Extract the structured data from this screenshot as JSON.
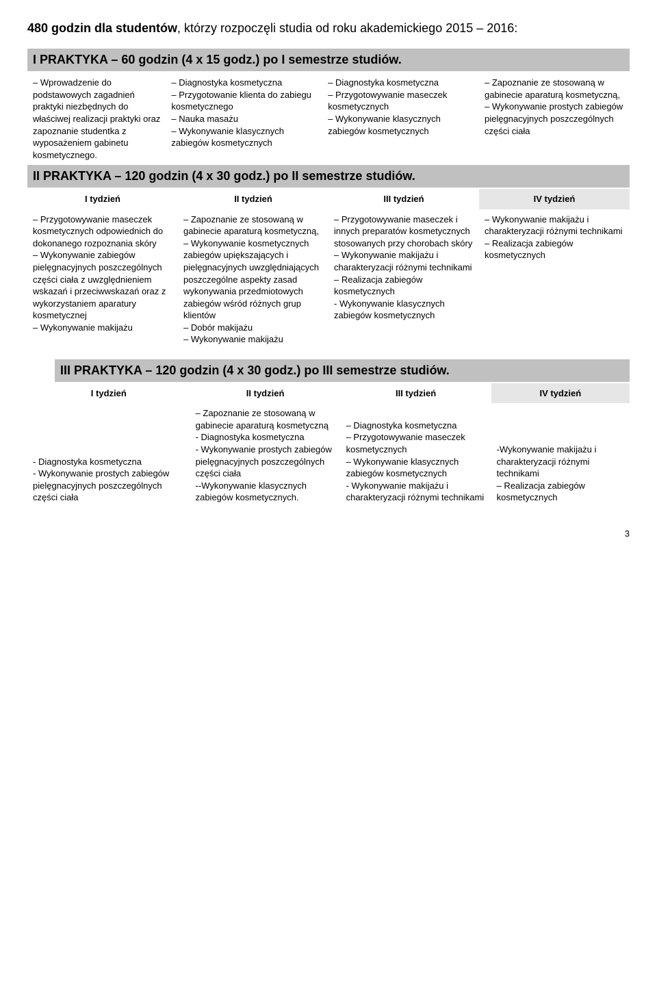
{
  "intro": {
    "bold": "480 godzin dla studentów",
    "rest": ", którzy rozpoczęli studia od roku akademickiego 2015 – 2016:"
  },
  "section1": {
    "title": "I PRAKTYKA – 60 godzin (4 x 15 godz.) po I semestrze studiów.",
    "cols": [
      "– Wprowadzenie do podstawowych zagadnień praktyki niezbędnych do właściwej realizacji praktyki oraz zapoznanie studentka z wyposażeniem gabinetu kosmetycznego.",
      "– Diagnostyka kosmetyczna\n– Przygotowanie klienta do zabiegu kosmetycznego\n– Nauka masażu\n– Wykonywanie klasycznych zabiegów kosmetycznych",
      "– Diagnostyka kosmetyczna\n– Przygotowywanie maseczek kosmetycznych\n– Wykonywanie klasycznych zabiegów kosmetycznych",
      "– Zapoznanie ze stosowaną w gabinecie aparaturą kosmetyczną,\n– Wykonywanie prostych zabiegów pielęgnacyjnych poszczególnych części ciała"
    ]
  },
  "section2": {
    "title": "II PRAKTYKA – 120 godzin (4 x 30 godz.) po II semestrze studiów.",
    "weeks": [
      "I tydzień",
      "II tydzień",
      "III tydzień",
      "IV tydzień"
    ],
    "cols": [
      "– Przygotowywanie maseczek kosmetycznych odpowiednich do dokonanego rozpoznania skóry\n– Wykonywanie zabiegów pielęgnacyjnych poszczególnych części ciała z uwzględnieniem wskazań i przeciwwskazań oraz z wykorzystaniem aparatury kosmetycznej\n– Wykonywanie makijażu",
      "– Zapoznanie ze stosowaną w gabinecie aparaturą kosmetyczną,\n– Wykonywanie kosmetycznych zabiegów upiększających i pielęgnacyjnych uwzględniających poszczególne aspekty zasad wykonywania przedmiotowych zabiegów wśród różnych grup klientów\n– Dobór makijażu\n– Wykonywanie makijażu",
      "– Przygotowywanie maseczek i innych preparatów kosmetycznych stosowanych przy chorobach skóry\n– Wykonywanie makijażu i charakteryzacji różnymi technikami\n– Realizacja zabiegów kosmetycznych\n- Wykonywanie klasycznych zabiegów kosmetycznych",
      "– Wykonywanie makijażu i charakteryzacji różnymi technikami\n– Realizacja zabiegów kosmetycznych"
    ]
  },
  "section3": {
    "title": "III PRAKTYKA – 120 godzin (4 x 30 godz.) po III semestrze studiów.",
    "weeks": [
      "I tydzień",
      "II tydzień",
      "III tydzień",
      "IV tydzień"
    ],
    "cols": [
      "- Diagnostyka kosmetyczna\n- Wykonywanie prostych zabiegów pielęgnacyjnych poszczególnych części ciała",
      "– Zapoznanie ze stosowaną w gabinecie aparaturą kosmetyczną\n- Diagnostyka kosmetyczna\n- Wykonywanie prostych zabiegów pielęgnacyjnych poszczególnych części ciała\n--Wykonywanie klasycznych zabiegów kosmetycznych.",
      "– Diagnostyka kosmetyczna\n– Przygotowywanie maseczek kosmetycznych\n– Wykonywanie klasycznych zabiegów kosmetycznych\n- Wykonywanie makijażu i charakteryzacji różnymi technikami",
      "-Wykonywanie makijażu i charakteryzacji różnymi technikami\n– Realizacja zabiegów kosmetycznych"
    ]
  },
  "pageNumber": "3"
}
